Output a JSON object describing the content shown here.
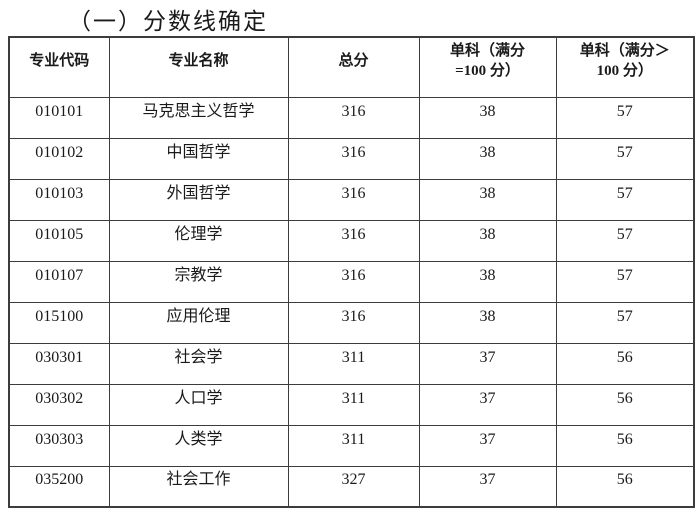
{
  "title": "（一）分数线确定",
  "table": {
    "column_names": [
      "major-code",
      "major-name",
      "total-score",
      "single-subject-full-100",
      "single-subject-over-100"
    ],
    "headers": [
      "专业代码",
      "专业名称",
      "总分",
      "单科（满分\n=100 分）",
      "单科（满分＞\n100 分）"
    ],
    "rows": [
      [
        "010101",
        "马克思主义哲学",
        "316",
        "38",
        "57"
      ],
      [
        "010102",
        "中国哲学",
        "316",
        "38",
        "57"
      ],
      [
        "010103",
        "外国哲学",
        "316",
        "38",
        "57"
      ],
      [
        "010105",
        "伦理学",
        "316",
        "38",
        "57"
      ],
      [
        "010107",
        "宗教学",
        "316",
        "38",
        "57"
      ],
      [
        "015100",
        "应用伦理",
        "316",
        "38",
        "57"
      ],
      [
        "030301",
        "社会学",
        "311",
        "37",
        "56"
      ],
      [
        "030302",
        "人口学",
        "311",
        "37",
        "56"
      ],
      [
        "030303",
        "人类学",
        "311",
        "37",
        "56"
      ],
      [
        "035200",
        "社会工作",
        "327",
        "37",
        "56"
      ]
    ]
  },
  "colors": {
    "text": "#1a1a1a",
    "border": "#3c3c3c",
    "background": "#ffffff"
  }
}
